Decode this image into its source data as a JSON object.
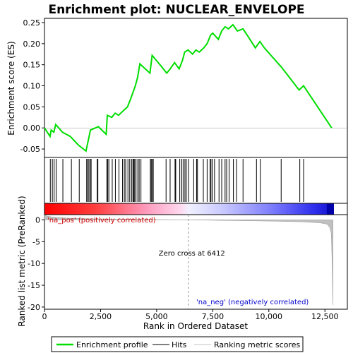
{
  "chart_data": {
    "type": "line",
    "title": "Enrichment plot: NUCLEAR_ENVELOPE",
    "x_axis": {
      "label": "Rank in Ordered Dataset",
      "range": [
        0,
        13500
      ],
      "ticks": [
        0,
        2500,
        5000,
        7500,
        10000,
        12500
      ],
      "tick_labels": [
        "0",
        "2,500",
        "5,000",
        "7,500",
        "10,000",
        "12,500"
      ]
    },
    "es_panel": {
      "ylabel": "Enrichment score (ES)",
      "ylim": [
        -0.07,
        0.26
      ],
      "ticks": [
        -0.05,
        0.0,
        0.05,
        0.1,
        0.15,
        0.2,
        0.25
      ],
      "tick_labels": [
        "-0.05",
        "0.00",
        "0.05",
        "0.10",
        "0.15",
        "0.20",
        "0.25"
      ],
      "series": [
        {
          "name": "Enrichment profile",
          "color": "#00dd00",
          "x": [
            0,
            250,
            300,
            420,
            500,
            800,
            1150,
            1500,
            1850,
            1950,
            2050,
            2400,
            2750,
            2800,
            3000,
            3150,
            3300,
            3500,
            3700,
            3850,
            3950,
            4050,
            4150,
            4250,
            4700,
            4800,
            5150,
            5450,
            5600,
            5800,
            6000,
            6150,
            6250,
            6400,
            6600,
            6750,
            6900,
            7100,
            7250,
            7400,
            7500,
            7750,
            7900,
            8050,
            8200,
            8400,
            8600,
            8850,
            9100,
            9400,
            9600,
            9800,
            10550,
            11350,
            11550,
            12800
          ],
          "y": [
            0.0,
            -0.02,
            -0.005,
            -0.01,
            0.008,
            -0.01,
            -0.02,
            -0.04,
            -0.055,
            -0.03,
            -0.005,
            0.003,
            -0.015,
            0.03,
            0.025,
            0.035,
            0.03,
            0.04,
            0.05,
            0.07,
            0.085,
            0.1,
            0.12,
            0.152,
            0.13,
            0.172,
            0.15,
            0.13,
            0.14,
            0.155,
            0.14,
            0.16,
            0.18,
            0.185,
            0.175,
            0.185,
            0.18,
            0.19,
            0.2,
            0.22,
            0.225,
            0.21,
            0.23,
            0.24,
            0.235,
            0.245,
            0.23,
            0.235,
            0.215,
            0.19,
            0.205,
            0.19,
            0.145,
            0.09,
            0.1,
            0.0
          ]
        }
      ]
    },
    "hits": {
      "name": "Hits",
      "color": "#000000",
      "positions": [
        260,
        350,
        430,
        520,
        820,
        1200,
        1550,
        1880,
        1930,
        1980,
        2040,
        2080,
        2350,
        2380,
        2780,
        2820,
        2870,
        3020,
        3160,
        3320,
        3480,
        3560,
        3620,
        3720,
        3800,
        3880,
        3940,
        3980,
        4020,
        4080,
        4160,
        4220,
        4300,
        4720,
        4760,
        4800,
        4850,
        5420,
        5600,
        5820,
        5850,
        6030,
        6120,
        6180,
        6260,
        6320,
        6420,
        6650,
        6780,
        6820,
        7080,
        7250,
        7380,
        7420,
        7480,
        7580,
        7780,
        7900,
        8050,
        8120,
        8230,
        8420,
        8560,
        8850,
        9450,
        9620,
        10550,
        11380,
        11550
      ]
    },
    "rank_metric": {
      "name": "Ranking metric scores",
      "color": "#c0c0c0",
      "ylabel": "Ranked list metric (PreRanked)",
      "ylim": [
        -20.5,
        1.2
      ],
      "ticks": [
        0,
        -5,
        -10,
        -15,
        -20
      ],
      "tick_labels": [
        "0",
        "-5",
        "-10",
        "-15",
        "-20"
      ],
      "profile_x": [
        0,
        100,
        400,
        1000,
        2000,
        4000,
        6412,
        8000,
        10000,
        11500,
        12300,
        12600,
        12720,
        12780,
        12800,
        12830,
        12860
      ],
      "profile_y": [
        1.1,
        0.9,
        0.6,
        0.4,
        0.25,
        0.12,
        0.0,
        -0.12,
        -0.28,
        -0.45,
        -0.7,
        -1.0,
        -1.8,
        -3.0,
        -6.0,
        -12.0,
        -19.5
      ]
    },
    "zero_cross": {
      "rank": 6412,
      "label": "Zero cross at 6412"
    },
    "na_pos_label": "'na_pos' (positively correlated)",
    "na_neg_label": "'na_neg' (negatively correlated)",
    "legend": {
      "placement": "bottom",
      "items": [
        {
          "label": "Enrichment profile",
          "color": "#00dd00"
        },
        {
          "label": "Hits",
          "color": "#000000"
        },
        {
          "label": "Ranking metric scores",
          "color": "#c0c0c0"
        }
      ]
    },
    "colors": {
      "pos_label": "#cc0000",
      "neg_label": "#0000cc",
      "profile": "#00dd00",
      "bar_left": "#ff0000",
      "bar_mid": "#ffffff",
      "bar_right": "#0000ff"
    }
  }
}
